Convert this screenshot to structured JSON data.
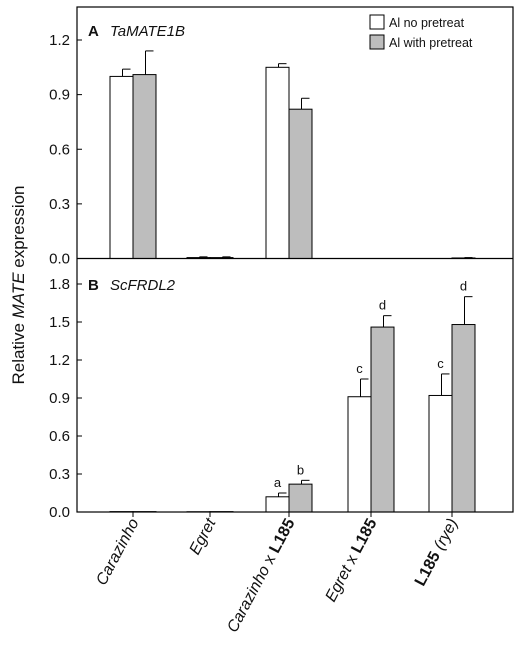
{
  "ylabel": {
    "pre": "Relative ",
    "italic": "MATE",
    "post": " expression"
  },
  "categories": [
    [
      {
        "t": "Carazinho",
        "s": "i"
      }
    ],
    [
      {
        "t": "Egret",
        "s": "i"
      }
    ],
    [
      {
        "t": "Carazinho",
        "s": "i"
      },
      {
        "t": " x ",
        "s": "n"
      },
      {
        "t": "L185",
        "s": "b"
      }
    ],
    [
      {
        "t": "Egret",
        "s": "i"
      },
      {
        "t": " x ",
        "s": "n"
      },
      {
        "t": "L185",
        "s": "b"
      }
    ],
    [
      {
        "t": "L185",
        "s": "b"
      },
      {
        "t": " (rye)",
        "s": "i"
      }
    ]
  ],
  "legend": [
    "Al no pretreat",
    "Al with pretreat"
  ],
  "colors": {
    "no_pretreat": "#ffffff",
    "with_pretreat": "#bdbdbd",
    "axis": "#000000"
  },
  "chart_data": [
    {
      "type": "bar",
      "panel": "A",
      "title": "TaMATE1B",
      "categories": [
        "Carazinho",
        "Egret",
        "Carazinho x L185",
        "Egret x L185",
        "L185 (rye)"
      ],
      "ylim": [
        0,
        1.4
      ],
      "yticks": [
        "0.0",
        "0.3",
        "0.6",
        "0.9",
        "1.2"
      ],
      "series": [
        {
          "name": "Al no pretreat",
          "values": [
            1.0,
            0.005,
            1.05,
            0,
            0
          ],
          "errors": [
            0.04,
            0.004,
            0.02,
            0,
            0
          ]
        },
        {
          "name": "Al with pretreat",
          "values": [
            1.01,
            0.005,
            0.82,
            0,
            0.003
          ],
          "errors": [
            0.13,
            0.004,
            0.06,
            0,
            0.002
          ]
        }
      ],
      "legend_position": "top-right"
    },
    {
      "type": "bar",
      "panel": "B",
      "title": "ScFRDL2",
      "categories": [
        "Carazinho",
        "Egret",
        "Carazinho x L185",
        "Egret x L185",
        "L185 (rye)"
      ],
      "ylim": [
        0,
        2.0
      ],
      "yticks": [
        "0.0",
        "0.3",
        "0.6",
        "0.9",
        "1.2",
        "1.5",
        "1.8"
      ],
      "series": [
        {
          "name": "Al no pretreat",
          "values": [
            0.003,
            0.002,
            0.12,
            0.91,
            0.92
          ],
          "errors": [
            0,
            0,
            0.03,
            0.14,
            0.17
          ],
          "labels": [
            "",
            "",
            "a",
            "c",
            "c"
          ]
        },
        {
          "name": "Al with pretreat",
          "values": [
            0.003,
            0.003,
            0.22,
            1.46,
            1.48
          ],
          "errors": [
            0,
            0,
            0.03,
            0.09,
            0.22
          ],
          "labels": [
            "",
            "",
            "b",
            "d",
            "d"
          ]
        }
      ]
    }
  ]
}
